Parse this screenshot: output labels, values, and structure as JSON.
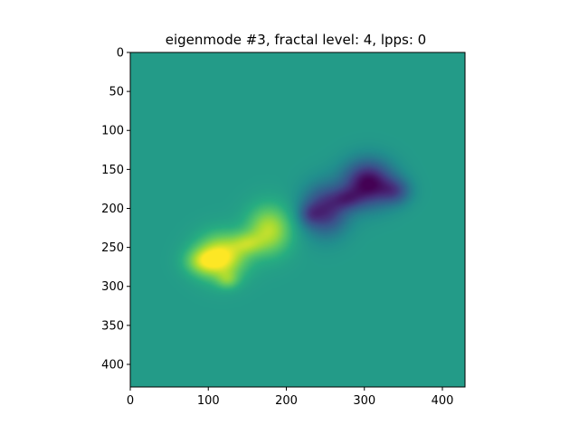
{
  "chart_data": {
    "type": "heatmap",
    "title": "eigenmode #3, fractal level: 4, lpps: 0",
    "xlabel": "",
    "ylabel": "",
    "colormap": "viridis",
    "background_value": 0.55,
    "xlim": [
      0,
      429
    ],
    "ylim": [
      429,
      0
    ],
    "x_ticks": [
      0,
      100,
      200,
      300,
      400
    ],
    "y_ticks": [
      0,
      50,
      100,
      150,
      200,
      250,
      300,
      350,
      400
    ],
    "x_tick_labels": [
      "0",
      "100",
      "200",
      "300",
      "400"
    ],
    "y_tick_labels": [
      "0",
      "50",
      "100",
      "150",
      "200",
      "250",
      "300",
      "350",
      "400"
    ],
    "features": [
      {
        "sign": "positive",
        "x": 117,
        "y": 262,
        "sx": 22,
        "sy": 20,
        "amplitude": 0.45
      },
      {
        "sign": "positive",
        "x": 178,
        "y": 228,
        "sx": 20,
        "sy": 22,
        "amplitude": 0.35
      },
      {
        "sign": "positive",
        "x": 92,
        "y": 268,
        "sx": 16,
        "sy": 12,
        "amplitude": 0.22
      },
      {
        "sign": "positive",
        "x": 150,
        "y": 245,
        "sx": 14,
        "sy": 10,
        "amplitude": 0.18
      },
      {
        "sign": "positive",
        "x": 125,
        "y": 292,
        "sx": 10,
        "sy": 8,
        "amplitude": 0.15
      },
      {
        "sign": "negative",
        "x": 305,
        "y": 168,
        "sx": 22,
        "sy": 20,
        "amplitude": 0.55
      },
      {
        "sign": "negative",
        "x": 250,
        "y": 202,
        "sx": 20,
        "sy": 22,
        "amplitude": 0.42
      },
      {
        "sign": "negative",
        "x": 340,
        "y": 178,
        "sx": 14,
        "sy": 12,
        "amplitude": 0.25
      },
      {
        "sign": "negative",
        "x": 278,
        "y": 188,
        "sx": 14,
        "sy": 10,
        "amplitude": 0.2
      },
      {
        "sign": "negative",
        "x": 230,
        "y": 208,
        "sx": 10,
        "sy": 10,
        "amplitude": 0.15
      }
    ]
  }
}
